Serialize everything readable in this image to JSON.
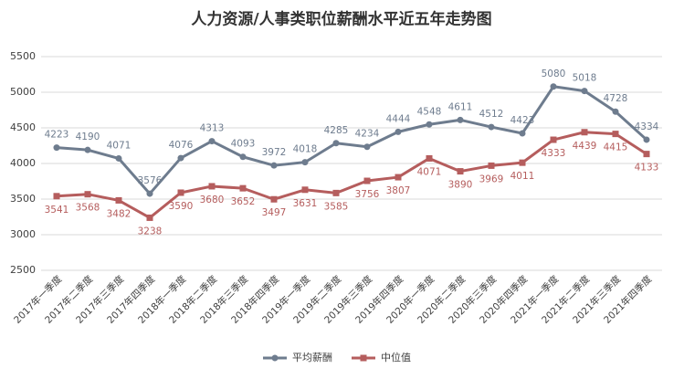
{
  "chart_data": {
    "type": "line",
    "title": "人力资源/人事类职位薪酬水平近五年走势图",
    "categories": [
      "2017年一季度",
      "2017年二季度",
      "2017年三季度",
      "2017年四季度",
      "2018年一季度",
      "2018年二季度",
      "2018年三季度",
      "2018年四季度",
      "2019年一季度",
      "2019年二季度",
      "2019年三季度",
      "2019年四季度",
      "2020年一季度",
      "2020年二季度",
      "2020年三季度",
      "2020年四季度",
      "2021年一季度",
      "2021年二季度",
      "2021年三季度",
      "2021年四季度"
    ],
    "series": [
      {
        "name": "平均薪酬",
        "color": "#6e7c8e",
        "marker": "circle",
        "values": [
          4223,
          4190,
          4071,
          3576,
          4076,
          4313,
          4093,
          3972,
          4018,
          4285,
          4234,
          4444,
          4548,
          4611,
          4512,
          4423,
          5080,
          5018,
          4728,
          4334
        ]
      },
      {
        "name": "中位值",
        "color": "#b55d5d",
        "marker": "square",
        "values": [
          3541,
          3568,
          3482,
          3238,
          3590,
          3680,
          3652,
          3497,
          3631,
          3585,
          3756,
          3807,
          4071,
          3890,
          3969,
          4011,
          4333,
          4439,
          4415,
          4133
        ]
      }
    ],
    "ylim": [
      2500,
      5500
    ],
    "yticks": [
      2500,
      3000,
      3500,
      4000,
      4500,
      5000,
      5500
    ],
    "grid": true,
    "legend": "bottom"
  }
}
